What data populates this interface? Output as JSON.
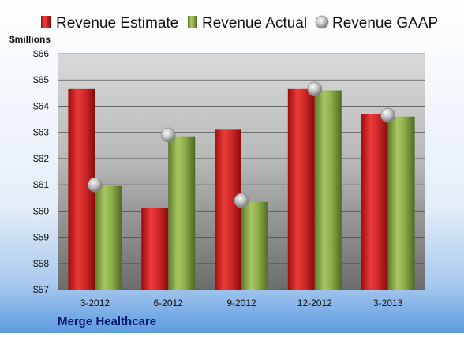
{
  "colors": {
    "estimate": "#d42a2a",
    "actual": "#8fb04a",
    "gaap": "#c8c8c8",
    "background_top": "#ffffff",
    "background_bottom": "#5c9be0",
    "company_text": "#0b1a6e"
  },
  "company": "Merge Healthcare",
  "chart_data": {
    "type": "bar",
    "categories": [
      "3-2012",
      "6-2012",
      "9-2012",
      "12-2012",
      "3-2013"
    ],
    "series": [
      {
        "name": "Revenue Estimate",
        "kind": "bar",
        "values": [
          64.65,
          60.1,
          63.1,
          64.65,
          63.7
        ]
      },
      {
        "name": "Revenue Actual",
        "kind": "bar",
        "values": [
          60.95,
          62.85,
          60.35,
          64.6,
          63.6
        ]
      },
      {
        "name": "Revenue GAAP",
        "kind": "marker",
        "values": [
          61.0,
          62.9,
          60.4,
          64.65,
          63.65
        ]
      }
    ],
    "ylabel": "$millions",
    "ylim": [
      57,
      66
    ],
    "yticks": [
      "$57",
      "$58",
      "$59",
      "$60",
      "$61",
      "$62",
      "$63",
      "$64",
      "$65",
      "$66"
    ],
    "grid": true,
    "legend": "top"
  }
}
